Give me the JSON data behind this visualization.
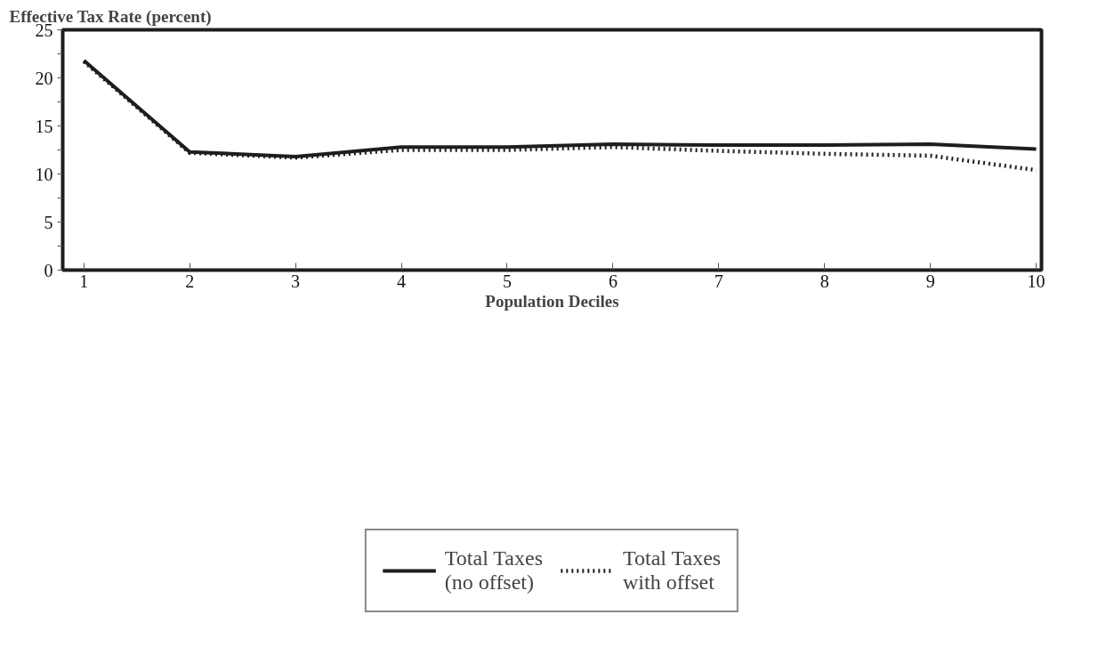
{
  "chart_data": {
    "type": "line",
    "ylabel": "Effective Tax Rate (percent)",
    "xlabel": "Population Deciles",
    "x": [
      1,
      2,
      3,
      4,
      5,
      6,
      7,
      8,
      9,
      10
    ],
    "series": [
      {
        "name": "Total Taxes\n(no offset)",
        "color": "#1e1e1e",
        "line_style": "solid",
        "values": [
          21.8,
          12.3,
          11.8,
          12.8,
          12.8,
          13.1,
          13.0,
          13.0,
          13.1,
          12.6
        ]
      },
      {
        "name": "Total Taxes\nwith offset",
        "color": "#1e1e1e",
        "line_style": "dotted",
        "values": [
          21.7,
          12.2,
          11.7,
          12.5,
          12.5,
          12.8,
          12.4,
          12.1,
          11.9,
          10.4
        ]
      }
    ],
    "xlim": [
      0.8,
      10.05
    ],
    "ylim": [
      0,
      25
    ],
    "xticks": [
      1,
      2,
      3,
      4,
      5,
      6,
      7,
      8,
      9,
      10
    ],
    "yticks": [
      0,
      {
        "value": 2.5,
        "label": null
      },
      5,
      {
        "value": 7.5,
        "label": null
      },
      10,
      {
        "value": 12.5,
        "label": null
      },
      15,
      {
        "value": 17.5,
        "label": null
      },
      20,
      {
        "value": 22.5,
        "label": null
      },
      25
    ],
    "grid": false,
    "legend": "bottom",
    "marker": "none"
  }
}
